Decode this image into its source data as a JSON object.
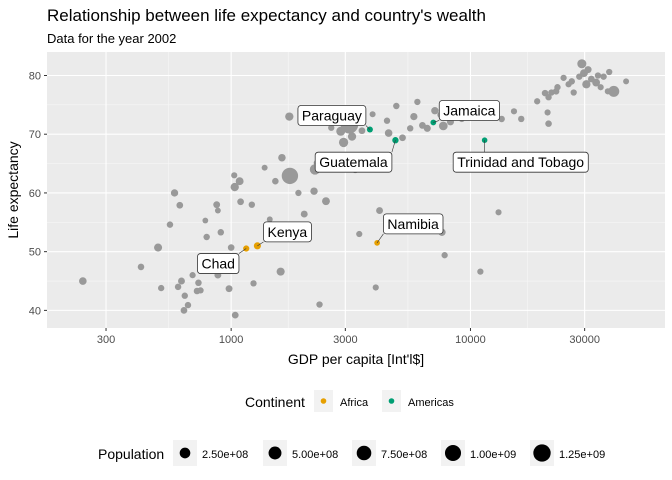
{
  "chart_data": {
    "type": "scatter",
    "title": "Relationship between life expectancy and country's wealth",
    "subtitle": "Data for the year 2002",
    "xlabel": "GDP per capita [Int'l$]",
    "ylabel": "Life expectancy",
    "x_scale": "log10",
    "xlim": [
      170,
      65000
    ],
    "ylim": [
      37,
      84
    ],
    "x_ticks": [
      300,
      1000,
      3000,
      10000,
      30000
    ],
    "x_tick_labels": [
      "300",
      "1000",
      "3000",
      "10000",
      "30000"
    ],
    "y_ticks": [
      40,
      50,
      60,
      70,
      80
    ],
    "y_tick_labels": [
      "40",
      "50",
      "60",
      "70",
      "80"
    ],
    "grid": true,
    "legend_position": "bottom",
    "colors": {
      "Africa": "#E69F00",
      "Americas": "#009E73",
      "Other": "#999999",
      "panel": "#EBEBEB",
      "grid": "#ffffff"
    },
    "color_legend": {
      "title": "Continent",
      "entries": [
        "Africa",
        "Americas"
      ]
    },
    "size_legend": {
      "title": "Population",
      "entries": [
        {
          "label": "2.50e+08",
          "value": 250000000
        },
        {
          "label": "5.00e+08",
          "value": 500000000
        },
        {
          "label": "7.50e+08",
          "value": 750000000
        },
        {
          "label": "1.00e+09",
          "value": 1000000000
        },
        {
          "label": "1.25e+09",
          "value": 1250000000
        }
      ]
    },
    "labeled_points": [
      {
        "label": "Paraguay",
        "x": 3800,
        "y": 70.8,
        "group": "Americas",
        "pop": 5900000
      },
      {
        "label": "Jamaica",
        "x": 6995,
        "y": 72.0,
        "group": "Americas",
        "pop": 2700000
      },
      {
        "label": "Guatemala",
        "x": 4858,
        "y": 68.98,
        "group": "Americas",
        "pop": 11200000
      },
      {
        "label": "Trinidad and Tobago",
        "x": 11460,
        "y": 68.98,
        "group": "Americas",
        "pop": 1100000
      },
      {
        "label": "Kenya",
        "x": 1287,
        "y": 50.99,
        "group": "Africa",
        "pop": 31400000
      },
      {
        "label": "Chad",
        "x": 1156,
        "y": 50.53,
        "group": "Africa",
        "pop": 8800000
      },
      {
        "label": "Namibia",
        "x": 4073,
        "y": 51.5,
        "group": "Africa",
        "pop": 1900000
      }
    ],
    "other_points": [
      {
        "x": 240,
        "y": 45.0,
        "pop": 50000000
      },
      {
        "x": 420,
        "y": 47.4,
        "pop": 16000000
      },
      {
        "x": 510,
        "y": 43.8,
        "pop": 10000000
      },
      {
        "x": 495,
        "y": 50.7,
        "pop": 70000000
      },
      {
        "x": 555,
        "y": 54.6,
        "pop": 13000000
      },
      {
        "x": 580,
        "y": 60.0,
        "pop": 40000000
      },
      {
        "x": 610,
        "y": 57.9,
        "pop": 20000000
      },
      {
        "x": 620,
        "y": 45.0,
        "pop": 25000000
      },
      {
        "x": 600,
        "y": 44.0,
        "pop": 14000000
      },
      {
        "x": 640,
        "y": 42.5,
        "pop": 12000000
      },
      {
        "x": 635,
        "y": 40.0,
        "pop": 20000000
      },
      {
        "x": 660,
        "y": 40.9,
        "pop": 12000000
      },
      {
        "x": 690,
        "y": 46.0,
        "pop": 9000000
      },
      {
        "x": 720,
        "y": 43.3,
        "pop": 16000000
      },
      {
        "x": 730,
        "y": 44.7,
        "pop": 15000000
      },
      {
        "x": 745,
        "y": 43.4,
        "pop": 9000000
      },
      {
        "x": 790,
        "y": 52.5,
        "pop": 13000000
      },
      {
        "x": 780,
        "y": 55.3,
        "pop": 3000000
      },
      {
        "x": 870,
        "y": 58.0,
        "pop": 22000000
      },
      {
        "x": 880,
        "y": 57.0,
        "pop": 4000000
      },
      {
        "x": 905,
        "y": 53.3,
        "pop": 14000000
      },
      {
        "x": 880,
        "y": 46.0,
        "pop": 22000000
      },
      {
        "x": 980,
        "y": 43.7,
        "pop": 25000000
      },
      {
        "x": 1000,
        "y": 50.7,
        "pop": 18000000
      },
      {
        "x": 1035,
        "y": 61.0,
        "pop": 80000000
      },
      {
        "x": 1030,
        "y": 63.0,
        "pop": 8000000
      },
      {
        "x": 1040,
        "y": 39.2,
        "pop": 20000000
      },
      {
        "x": 1085,
        "y": 62.0,
        "pop": 60000000
      },
      {
        "x": 1095,
        "y": 58.5,
        "pop": 20000000
      },
      {
        "x": 1220,
        "y": 58.0,
        "pop": 12000000
      },
      {
        "x": 1240,
        "y": 44.6,
        "pop": 11000000
      },
      {
        "x": 1380,
        "y": 64.3,
        "pop": 5000000
      },
      {
        "x": 1450,
        "y": 55.5,
        "pop": 4000000
      },
      {
        "x": 1530,
        "y": 62.0,
        "pop": 15000000
      },
      {
        "x": 1610,
        "y": 46.6,
        "pop": 72000000
      },
      {
        "x": 1630,
        "y": 66.0,
        "pop": 45000000
      },
      {
        "x": 1750,
        "y": 73.0,
        "pop": 80000000
      },
      {
        "x": 1760,
        "y": 62.9,
        "pop": 1050000000
      },
      {
        "x": 1910,
        "y": 60.0,
        "pop": 10000000
      },
      {
        "x": 2020,
        "y": 56.4,
        "pop": 25000000
      },
      {
        "x": 2220,
        "y": 60.3,
        "pop": 42000000
      },
      {
        "x": 2240,
        "y": 64.0,
        "pop": 220000000
      },
      {
        "x": 2280,
        "y": 65.1,
        "pop": 9000000
      },
      {
        "x": 2340,
        "y": 41.0,
        "pop": 12000000
      },
      {
        "x": 2490,
        "y": 58.6,
        "pop": 60000000
      },
      {
        "x": 2620,
        "y": 71.1,
        "pop": 10000000
      },
      {
        "x": 2870,
        "y": 70.5,
        "pop": 120000000
      },
      {
        "x": 2950,
        "y": 68.6,
        "pop": 140000000
      },
      {
        "x": 3120,
        "y": 71.6,
        "pop": 1280000000
      },
      {
        "x": 3200,
        "y": 69.6,
        "pop": 80000000
      },
      {
        "x": 3300,
        "y": 63.9,
        "pop": 10000000
      },
      {
        "x": 3430,
        "y": 53.0,
        "pop": 9000000
      },
      {
        "x": 3520,
        "y": 70.6,
        "pop": 20000000
      },
      {
        "x": 3900,
        "y": 73.4,
        "pop": 6000000
      },
      {
        "x": 4020,
        "y": 43.9,
        "pop": 8000000
      },
      {
        "x": 4170,
        "y": 57.0,
        "pop": 25000000
      },
      {
        "x": 4480,
        "y": 72.3,
        "pop": 12000000
      },
      {
        "x": 4550,
        "y": 70.2,
        "pop": 50000000
      },
      {
        "x": 4900,
        "y": 74.8,
        "pop": 13000000
      },
      {
        "x": 5200,
        "y": 69.4,
        "pop": 22000000
      },
      {
        "x": 5600,
        "y": 71.0,
        "pop": 12000000
      },
      {
        "x": 5800,
        "y": 73.0,
        "pop": 35000000
      },
      {
        "x": 6000,
        "y": 75.5,
        "pop": 11000000
      },
      {
        "x": 6300,
        "y": 71.5,
        "pop": 22000000
      },
      {
        "x": 6600,
        "y": 71.0,
        "pop": 30000000
      },
      {
        "x": 7100,
        "y": 74.0,
        "pop": 40000000
      },
      {
        "x": 7500,
        "y": 73.3,
        "pop": 14000000
      },
      {
        "x": 7700,
        "y": 71.4,
        "pop": 100000000
      },
      {
        "x": 7600,
        "y": 53.3,
        "pop": 40000000
      },
      {
        "x": 7800,
        "y": 49.4,
        "pop": 10000000
      },
      {
        "x": 8250,
        "y": 72.1,
        "pop": 30000000
      },
      {
        "x": 8800,
        "y": 73.9,
        "pop": 20000000
      },
      {
        "x": 9200,
        "y": 72.6,
        "pop": 10000000
      },
      {
        "x": 10300,
        "y": 74.0,
        "pop": 40000000
      },
      {
        "x": 10800,
        "y": 74.7,
        "pop": 9000000
      },
      {
        "x": 11000,
        "y": 46.6,
        "pop": 9000000
      },
      {
        "x": 12200,
        "y": 73.0,
        "pop": 14000000
      },
      {
        "x": 13100,
        "y": 56.7,
        "pop": 7000000
      },
      {
        "x": 13500,
        "y": 72.6,
        "pop": 14000000
      },
      {
        "x": 15200,
        "y": 73.9,
        "pop": 9000000
      },
      {
        "x": 16300,
        "y": 72.6,
        "pop": 12000000
      },
      {
        "x": 19000,
        "y": 75.6,
        "pop": 10000000
      },
      {
        "x": 20500,
        "y": 77.0,
        "pop": 16000000
      },
      {
        "x": 21200,
        "y": 76.3,
        "pop": 12000000
      },
      {
        "x": 21000,
        "y": 73.7,
        "pop": 8000000
      },
      {
        "x": 21200,
        "y": 71.8,
        "pop": 16000000
      },
      {
        "x": 21800,
        "y": 77.1,
        "pop": 10000000
      },
      {
        "x": 22800,
        "y": 77.3,
        "pop": 15000000
      },
      {
        "x": 23100,
        "y": 78.0,
        "pop": 12000000
      },
      {
        "x": 24500,
        "y": 79.6,
        "pop": 10000000
      },
      {
        "x": 25700,
        "y": 78.5,
        "pop": 9000000
      },
      {
        "x": 26500,
        "y": 79.0,
        "pop": 14000000
      },
      {
        "x": 27000,
        "y": 77.1,
        "pop": 10000000
      },
      {
        "x": 28500,
        "y": 79.8,
        "pop": 12000000
      },
      {
        "x": 29200,
        "y": 82.0,
        "pop": 127000000
      },
      {
        "x": 29800,
        "y": 80.4,
        "pop": 60000000
      },
      {
        "x": 30500,
        "y": 78.5,
        "pop": 80000000
      },
      {
        "x": 31000,
        "y": 81.0,
        "pop": 30000000
      },
      {
        "x": 32000,
        "y": 79.4,
        "pop": 20000000
      },
      {
        "x": 33500,
        "y": 78.8,
        "pop": 60000000
      },
      {
        "x": 34100,
        "y": 80.0,
        "pop": 10000000
      },
      {
        "x": 35000,
        "y": 78.0,
        "pop": 8000000
      },
      {
        "x": 36000,
        "y": 79.8,
        "pop": 12000000
      },
      {
        "x": 37500,
        "y": 77.3,
        "pop": 9000000
      },
      {
        "x": 38000,
        "y": 80.6,
        "pop": 10000000
      },
      {
        "x": 39700,
        "y": 77.3,
        "pop": 287000000
      },
      {
        "x": 44700,
        "y": 79.0,
        "pop": 5000000
      }
    ]
  }
}
